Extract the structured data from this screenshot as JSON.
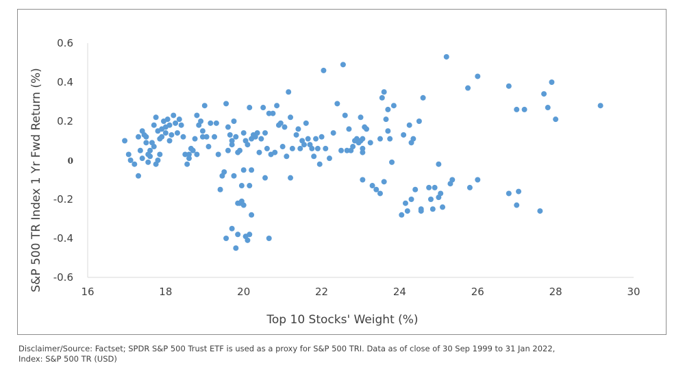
{
  "chart_data": {
    "type": "scatter",
    "title": "",
    "xlabel": "Top 10 Stocks' Weight (%)",
    "ylabel": "S&P 500 TR Index 1 Yr Fwd  Return (%)",
    "xlim": [
      16,
      30
    ],
    "ylim": [
      -0.6,
      0.6
    ],
    "x_ticks": [
      "16",
      "18",
      "20",
      "22",
      "24",
      "26",
      "28",
      "30"
    ],
    "y_ticks": [
      "0.6",
      "0.4",
      "0.2",
      "0",
      "-0.2",
      "-0.4",
      "-0.6"
    ],
    "grid": false,
    "legend": "none",
    "marker_color": "#5b9bd5",
    "points": [
      [
        16.95,
        0.1
      ],
      [
        17.05,
        0.03
      ],
      [
        17.1,
        0.0
      ],
      [
        17.2,
        -0.02
      ],
      [
        17.3,
        0.12
      ],
      [
        17.35,
        0.05
      ],
      [
        17.4,
        0.15
      ],
      [
        17.45,
        0.13
      ],
      [
        17.5,
        0.09
      ],
      [
        17.55,
        0.03
      ],
      [
        17.3,
        -0.08
      ],
      [
        17.4,
        0.01
      ],
      [
        17.55,
        -0.01
      ],
      [
        17.6,
        0.02
      ],
      [
        17.7,
        0.18
      ],
      [
        17.75,
        0.22
      ],
      [
        17.8,
        0.15
      ],
      [
        17.85,
        0.11
      ],
      [
        17.9,
        0.16
      ],
      [
        17.95,
        0.2
      ],
      [
        18.0,
        0.14
      ],
      [
        18.05,
        0.21
      ],
      [
        18.1,
        0.18
      ],
      [
        18.15,
        0.13
      ],
      [
        18.2,
        0.23
      ],
      [
        18.25,
        0.19
      ],
      [
        18.3,
        0.14
      ],
      [
        18.35,
        0.21
      ],
      [
        18.4,
        0.18
      ],
      [
        18.45,
        0.12
      ],
      [
        17.7,
        0.07
      ],
      [
        17.8,
        0.0
      ],
      [
        17.85,
        0.03
      ],
      [
        17.75,
        -0.02
      ],
      [
        17.65,
        0.09
      ],
      [
        17.5,
        0.12
      ],
      [
        17.9,
        0.12
      ],
      [
        18.0,
        0.17
      ],
      [
        18.1,
        0.1
      ],
      [
        17.6,
        0.05
      ],
      [
        18.5,
        0.03
      ],
      [
        18.55,
        -0.02
      ],
      [
        18.6,
        0.01
      ],
      [
        18.65,
        0.06
      ],
      [
        18.7,
        0.05
      ],
      [
        18.75,
        0.11
      ],
      [
        18.8,
        0.23
      ],
      [
        18.85,
        0.18
      ],
      [
        18.9,
        0.2
      ],
      [
        18.95,
        0.15
      ],
      [
        19.0,
        0.28
      ],
      [
        19.05,
        0.12
      ],
      [
        19.1,
        0.07
      ],
      [
        19.15,
        0.19
      ],
      [
        18.6,
        0.03
      ],
      [
        18.8,
        0.03
      ],
      [
        18.95,
        0.12
      ],
      [
        19.25,
        0.12
      ],
      [
        19.3,
        0.19
      ],
      [
        19.35,
        0.03
      ],
      [
        19.4,
        -0.15
      ],
      [
        19.45,
        -0.08
      ],
      [
        19.5,
        -0.06
      ],
      [
        19.55,
        0.29
      ],
      [
        19.6,
        0.17
      ],
      [
        19.65,
        0.13
      ],
      [
        19.7,
        0.08
      ],
      [
        19.75,
        0.2
      ],
      [
        19.8,
        0.12
      ],
      [
        19.85,
        0.04
      ],
      [
        19.55,
        -0.4
      ],
      [
        19.7,
        -0.35
      ],
      [
        19.8,
        -0.45
      ],
      [
        19.85,
        -0.38
      ],
      [
        19.9,
        -0.22
      ],
      [
        19.95,
        -0.21
      ],
      [
        20.0,
        -0.23
      ],
      [
        20.05,
        -0.39
      ],
      [
        20.1,
        -0.41
      ],
      [
        20.15,
        -0.38
      ],
      [
        20.2,
        -0.28
      ],
      [
        19.95,
        -0.13
      ],
      [
        20.15,
        -0.13
      ],
      [
        20.2,
        -0.05
      ],
      [
        20.0,
        -0.05
      ],
      [
        19.75,
        -0.08
      ],
      [
        19.85,
        -0.22
      ],
      [
        19.6,
        0.05
      ],
      [
        19.7,
        0.1
      ],
      [
        19.9,
        0.05
      ],
      [
        20.0,
        0.14
      ],
      [
        20.05,
        0.1
      ],
      [
        20.1,
        0.08
      ],
      [
        20.15,
        0.27
      ],
      [
        20.2,
        0.11
      ],
      [
        20.25,
        0.13
      ],
      [
        20.3,
        0.12
      ],
      [
        20.35,
        0.14
      ],
      [
        20.4,
        0.04
      ],
      [
        20.45,
        0.11
      ],
      [
        20.5,
        0.27
      ],
      [
        20.55,
        0.14
      ],
      [
        20.6,
        0.06
      ],
      [
        20.65,
        0.24
      ],
      [
        20.7,
        0.03
      ],
      [
        20.75,
        0.24
      ],
      [
        20.8,
        0.04
      ],
      [
        20.85,
        0.28
      ],
      [
        20.9,
        0.18
      ],
      [
        20.95,
        0.19
      ],
      [
        20.55,
        -0.09
      ],
      [
        20.65,
        -0.4
      ],
      [
        21.0,
        0.07
      ],
      [
        21.05,
        0.17
      ],
      [
        21.1,
        0.02
      ],
      [
        21.15,
        0.35
      ],
      [
        21.2,
        0.22
      ],
      [
        21.25,
        0.06
      ],
      [
        21.2,
        -0.09
      ],
      [
        21.35,
        0.13
      ],
      [
        21.4,
        0.16
      ],
      [
        21.45,
        0.06
      ],
      [
        21.5,
        0.1
      ],
      [
        21.55,
        0.08
      ],
      [
        21.6,
        0.19
      ],
      [
        21.65,
        0.11
      ],
      [
        21.7,
        0.08
      ],
      [
        21.75,
        0.06
      ],
      [
        21.8,
        0.02
      ],
      [
        21.85,
        0.11
      ],
      [
        21.9,
        0.06
      ],
      [
        21.95,
        -0.02
      ],
      [
        22.0,
        0.12
      ],
      [
        22.05,
        0.46
      ],
      [
        22.1,
        0.06
      ],
      [
        22.2,
        0.01
      ],
      [
        22.3,
        0.14
      ],
      [
        22.4,
        0.29
      ],
      [
        22.5,
        0.05
      ],
      [
        22.55,
        0.49
      ],
      [
        22.6,
        0.23
      ],
      [
        22.65,
        0.05
      ],
      [
        22.7,
        0.16
      ],
      [
        22.75,
        0.05
      ],
      [
        22.8,
        0.07
      ],
      [
        22.85,
        0.1
      ],
      [
        22.9,
        0.11
      ],
      [
        22.95,
        0.09
      ],
      [
        23.0,
        0.1
      ],
      [
        23.05,
        0.06
      ],
      [
        23.0,
        0.22
      ],
      [
        23.05,
        0.11
      ],
      [
        23.1,
        0.17
      ],
      [
        23.15,
        0.16
      ],
      [
        23.05,
        -0.1
      ],
      [
        23.05,
        0.04
      ],
      [
        23.25,
        0.09
      ],
      [
        23.3,
        -0.13
      ],
      [
        23.4,
        -0.15
      ],
      [
        23.5,
        0.11
      ],
      [
        23.5,
        -0.17
      ],
      [
        23.55,
        0.32
      ],
      [
        23.6,
        0.35
      ],
      [
        23.65,
        0.21
      ],
      [
        23.7,
        0.26
      ],
      [
        23.7,
        0.15
      ],
      [
        23.75,
        0.11
      ],
      [
        23.8,
        -0.01
      ],
      [
        23.85,
        0.28
      ],
      [
        23.6,
        -0.11
      ],
      [
        24.05,
        -0.28
      ],
      [
        24.1,
        0.13
      ],
      [
        24.15,
        -0.22
      ],
      [
        24.2,
        -0.26
      ],
      [
        24.25,
        0.18
      ],
      [
        24.3,
        0.09
      ],
      [
        24.35,
        0.11
      ],
      [
        24.4,
        -0.15
      ],
      [
        24.5,
        0.2
      ],
      [
        24.55,
        -0.25
      ],
      [
        24.6,
        0.32
      ],
      [
        24.75,
        -0.14
      ],
      [
        24.8,
        -0.2
      ],
      [
        24.85,
        -0.25
      ],
      [
        24.9,
        -0.14
      ],
      [
        25.0,
        -0.02
      ],
      [
        25.05,
        -0.17
      ],
      [
        25.1,
        -0.24
      ],
      [
        25.2,
        0.53
      ],
      [
        25.3,
        -0.12
      ],
      [
        25.35,
        -0.1
      ],
      [
        25.75,
        0.37
      ],
      [
        25.8,
        -0.14
      ],
      [
        26.0,
        0.43
      ],
      [
        26.0,
        -0.1
      ],
      [
        26.8,
        0.38
      ],
      [
        26.8,
        -0.17
      ],
      [
        27.0,
        0.26
      ],
      [
        27.0,
        -0.23
      ],
      [
        27.05,
        -0.16
      ],
      [
        27.2,
        0.26
      ],
      [
        27.6,
        -0.26
      ],
      [
        27.7,
        0.34
      ],
      [
        27.8,
        0.27
      ],
      [
        27.9,
        0.4
      ],
      [
        28.0,
        0.21
      ],
      [
        29.15,
        0.28
      ],
      [
        24.3,
        -0.2
      ],
      [
        24.55,
        -0.26
      ],
      [
        25.0,
        -0.19
      ]
    ]
  },
  "footnote": {
    "line1": "Disclaimer/Source: Factset; SPDR S&P 500 Trust ETF is used as a proxy for S&P 500 TRI. Data as of close of 30 Sep 1999 to 31 Jan 2022,",
    "line2": "Index: S&P 500 TR (USD)"
  }
}
